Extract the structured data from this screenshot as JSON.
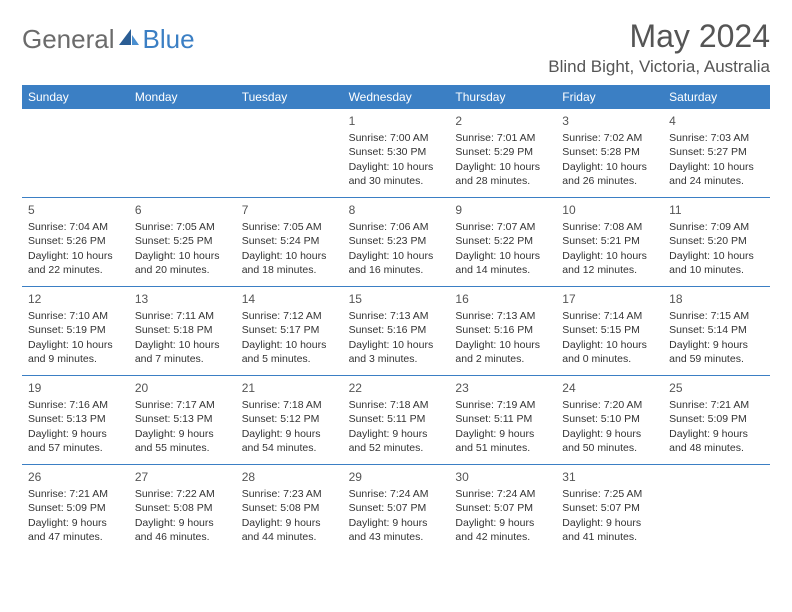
{
  "logo": {
    "text_general": "General",
    "text_blue": "Blue",
    "icon_color_dark": "#2b5d94",
    "icon_color_light": "#4a8fd0"
  },
  "header": {
    "month_title": "May 2024",
    "location": "Blind Bight, Victoria, Australia"
  },
  "styling": {
    "header_bg": "#3b7fc4",
    "header_fg": "#ffffff",
    "divider_color": "#3b7fc4",
    "body_bg": "#ffffff",
    "text_color": "#333333",
    "muted_color": "#555555",
    "font_family": "Arial",
    "day_header_fontsize": 12,
    "cell_fontsize": 10.5,
    "title_fontsize": 32,
    "location_fontsize": 17
  },
  "day_headers": [
    "Sunday",
    "Monday",
    "Tuesday",
    "Wednesday",
    "Thursday",
    "Friday",
    "Saturday"
  ],
  "weeks": [
    [
      {
        "num": "",
        "sunrise": "",
        "sunset": "",
        "daylight1": "",
        "daylight2": ""
      },
      {
        "num": "",
        "sunrise": "",
        "sunset": "",
        "daylight1": "",
        "daylight2": ""
      },
      {
        "num": "",
        "sunrise": "",
        "sunset": "",
        "daylight1": "",
        "daylight2": ""
      },
      {
        "num": "1",
        "sunrise": "Sunrise: 7:00 AM",
        "sunset": "Sunset: 5:30 PM",
        "daylight1": "Daylight: 10 hours",
        "daylight2": "and 30 minutes."
      },
      {
        "num": "2",
        "sunrise": "Sunrise: 7:01 AM",
        "sunset": "Sunset: 5:29 PM",
        "daylight1": "Daylight: 10 hours",
        "daylight2": "and 28 minutes."
      },
      {
        "num": "3",
        "sunrise": "Sunrise: 7:02 AM",
        "sunset": "Sunset: 5:28 PM",
        "daylight1": "Daylight: 10 hours",
        "daylight2": "and 26 minutes."
      },
      {
        "num": "4",
        "sunrise": "Sunrise: 7:03 AM",
        "sunset": "Sunset: 5:27 PM",
        "daylight1": "Daylight: 10 hours",
        "daylight2": "and 24 minutes."
      }
    ],
    [
      {
        "num": "5",
        "sunrise": "Sunrise: 7:04 AM",
        "sunset": "Sunset: 5:26 PM",
        "daylight1": "Daylight: 10 hours",
        "daylight2": "and 22 minutes."
      },
      {
        "num": "6",
        "sunrise": "Sunrise: 7:05 AM",
        "sunset": "Sunset: 5:25 PM",
        "daylight1": "Daylight: 10 hours",
        "daylight2": "and 20 minutes."
      },
      {
        "num": "7",
        "sunrise": "Sunrise: 7:05 AM",
        "sunset": "Sunset: 5:24 PM",
        "daylight1": "Daylight: 10 hours",
        "daylight2": "and 18 minutes."
      },
      {
        "num": "8",
        "sunrise": "Sunrise: 7:06 AM",
        "sunset": "Sunset: 5:23 PM",
        "daylight1": "Daylight: 10 hours",
        "daylight2": "and 16 minutes."
      },
      {
        "num": "9",
        "sunrise": "Sunrise: 7:07 AM",
        "sunset": "Sunset: 5:22 PM",
        "daylight1": "Daylight: 10 hours",
        "daylight2": "and 14 minutes."
      },
      {
        "num": "10",
        "sunrise": "Sunrise: 7:08 AM",
        "sunset": "Sunset: 5:21 PM",
        "daylight1": "Daylight: 10 hours",
        "daylight2": "and 12 minutes."
      },
      {
        "num": "11",
        "sunrise": "Sunrise: 7:09 AM",
        "sunset": "Sunset: 5:20 PM",
        "daylight1": "Daylight: 10 hours",
        "daylight2": "and 10 minutes."
      }
    ],
    [
      {
        "num": "12",
        "sunrise": "Sunrise: 7:10 AM",
        "sunset": "Sunset: 5:19 PM",
        "daylight1": "Daylight: 10 hours",
        "daylight2": "and 9 minutes."
      },
      {
        "num": "13",
        "sunrise": "Sunrise: 7:11 AM",
        "sunset": "Sunset: 5:18 PM",
        "daylight1": "Daylight: 10 hours",
        "daylight2": "and 7 minutes."
      },
      {
        "num": "14",
        "sunrise": "Sunrise: 7:12 AM",
        "sunset": "Sunset: 5:17 PM",
        "daylight1": "Daylight: 10 hours",
        "daylight2": "and 5 minutes."
      },
      {
        "num": "15",
        "sunrise": "Sunrise: 7:13 AM",
        "sunset": "Sunset: 5:16 PM",
        "daylight1": "Daylight: 10 hours",
        "daylight2": "and 3 minutes."
      },
      {
        "num": "16",
        "sunrise": "Sunrise: 7:13 AM",
        "sunset": "Sunset: 5:16 PM",
        "daylight1": "Daylight: 10 hours",
        "daylight2": "and 2 minutes."
      },
      {
        "num": "17",
        "sunrise": "Sunrise: 7:14 AM",
        "sunset": "Sunset: 5:15 PM",
        "daylight1": "Daylight: 10 hours",
        "daylight2": "and 0 minutes."
      },
      {
        "num": "18",
        "sunrise": "Sunrise: 7:15 AM",
        "sunset": "Sunset: 5:14 PM",
        "daylight1": "Daylight: 9 hours",
        "daylight2": "and 59 minutes."
      }
    ],
    [
      {
        "num": "19",
        "sunrise": "Sunrise: 7:16 AM",
        "sunset": "Sunset: 5:13 PM",
        "daylight1": "Daylight: 9 hours",
        "daylight2": "and 57 minutes."
      },
      {
        "num": "20",
        "sunrise": "Sunrise: 7:17 AM",
        "sunset": "Sunset: 5:13 PM",
        "daylight1": "Daylight: 9 hours",
        "daylight2": "and 55 minutes."
      },
      {
        "num": "21",
        "sunrise": "Sunrise: 7:18 AM",
        "sunset": "Sunset: 5:12 PM",
        "daylight1": "Daylight: 9 hours",
        "daylight2": "and 54 minutes."
      },
      {
        "num": "22",
        "sunrise": "Sunrise: 7:18 AM",
        "sunset": "Sunset: 5:11 PM",
        "daylight1": "Daylight: 9 hours",
        "daylight2": "and 52 minutes."
      },
      {
        "num": "23",
        "sunrise": "Sunrise: 7:19 AM",
        "sunset": "Sunset: 5:11 PM",
        "daylight1": "Daylight: 9 hours",
        "daylight2": "and 51 minutes."
      },
      {
        "num": "24",
        "sunrise": "Sunrise: 7:20 AM",
        "sunset": "Sunset: 5:10 PM",
        "daylight1": "Daylight: 9 hours",
        "daylight2": "and 50 minutes."
      },
      {
        "num": "25",
        "sunrise": "Sunrise: 7:21 AM",
        "sunset": "Sunset: 5:09 PM",
        "daylight1": "Daylight: 9 hours",
        "daylight2": "and 48 minutes."
      }
    ],
    [
      {
        "num": "26",
        "sunrise": "Sunrise: 7:21 AM",
        "sunset": "Sunset: 5:09 PM",
        "daylight1": "Daylight: 9 hours",
        "daylight2": "and 47 minutes."
      },
      {
        "num": "27",
        "sunrise": "Sunrise: 7:22 AM",
        "sunset": "Sunset: 5:08 PM",
        "daylight1": "Daylight: 9 hours",
        "daylight2": "and 46 minutes."
      },
      {
        "num": "28",
        "sunrise": "Sunrise: 7:23 AM",
        "sunset": "Sunset: 5:08 PM",
        "daylight1": "Daylight: 9 hours",
        "daylight2": "and 44 minutes."
      },
      {
        "num": "29",
        "sunrise": "Sunrise: 7:24 AM",
        "sunset": "Sunset: 5:07 PM",
        "daylight1": "Daylight: 9 hours",
        "daylight2": "and 43 minutes."
      },
      {
        "num": "30",
        "sunrise": "Sunrise: 7:24 AM",
        "sunset": "Sunset: 5:07 PM",
        "daylight1": "Daylight: 9 hours",
        "daylight2": "and 42 minutes."
      },
      {
        "num": "31",
        "sunrise": "Sunrise: 7:25 AM",
        "sunset": "Sunset: 5:07 PM",
        "daylight1": "Daylight: 9 hours",
        "daylight2": "and 41 minutes."
      },
      {
        "num": "",
        "sunrise": "",
        "sunset": "",
        "daylight1": "",
        "daylight2": ""
      }
    ]
  ]
}
